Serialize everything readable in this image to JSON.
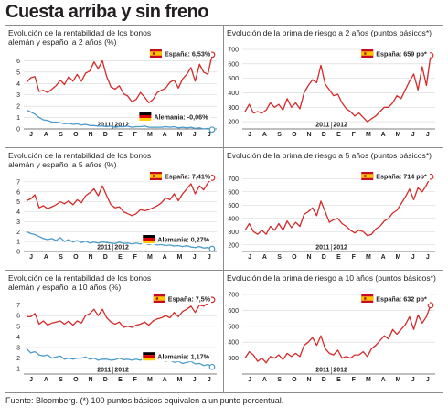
{
  "title": "Cuesta arriba y sin freno",
  "source": "Fuente: Bloomberg. (*) 100 puntos básicos equivalen a un punto porcentual.",
  "colors": {
    "spain": "#d42a2a",
    "germany": "#4a9bc9",
    "grid": "#d6d6d6",
    "frame": "#8c8c8c",
    "text": "#231f20"
  },
  "icons": {
    "spain": "spain-flag-icon",
    "germany": "germany-flag-icon"
  },
  "months": [
    "J",
    "A",
    "S",
    "O",
    "N",
    "D",
    "E",
    "F",
    "M",
    "A",
    "M",
    "J",
    "J"
  ],
  "chart_data": [
    {
      "id": "bono-2",
      "type": "line",
      "title_lines": [
        "Evolución de la rentabilidad de los bonos",
        "alemán y español a 2 años (%)"
      ],
      "ylim": [
        0,
        7
      ],
      "yticks": [
        0,
        1,
        2,
        3,
        4,
        5,
        6
      ],
      "year_labels": [
        "2011",
        "2012"
      ],
      "series": [
        {
          "name": "España",
          "color": "#d42a2a",
          "label": "España: 6,53%",
          "flag": "spain",
          "callout": "top",
          "values": [
            4.1,
            4.5,
            4.6,
            3.3,
            3.4,
            3.2,
            3.5,
            3.8,
            4.3,
            3.9,
            4.6,
            4.2,
            4.8,
            4.2,
            4.9,
            5.1,
            5.9,
            5.3,
            6.0,
            4.6,
            3.7,
            3.5,
            3.8,
            3.1,
            2.9,
            2.4,
            2.6,
            3.2,
            2.8,
            2.3,
            2.6,
            3.2,
            3.4,
            3.6,
            4.1,
            4.3,
            3.6,
            4.4,
            4.8,
            5.4,
            4.2,
            5.7,
            5.0,
            4.8,
            6.53
          ]
        },
        {
          "name": "Alemania",
          "color": "#4a9bc9",
          "label": "Alemania: -0,06%",
          "flag": "germany",
          "callout": "bottom",
          "values": [
            1.65,
            1.5,
            1.3,
            1.0,
            0.8,
            0.75,
            0.6,
            0.6,
            0.55,
            0.45,
            0.5,
            0.4,
            0.45,
            0.35,
            0.4,
            0.3,
            0.3,
            0.25,
            0.25,
            0.2,
            0.25,
            0.15,
            0.2,
            0.2,
            0.25,
            0.15,
            0.2,
            0.2,
            0.25,
            0.15,
            0.15,
            0.15,
            0.15,
            0.2,
            0.15,
            0.2,
            0.1,
            0.15,
            0.1,
            0.15,
            0.05,
            0.1,
            0.0,
            0.05,
            -0.06
          ]
        }
      ]
    },
    {
      "id": "prima-2",
      "type": "line",
      "title_lines": [
        "Evolución de la prima de riesgo a 2 años (puntos básicos*)"
      ],
      "ylim": [
        150,
        700
      ],
      "yticks": [
        200,
        300,
        400,
        500,
        600,
        700
      ],
      "year_labels": [
        "2011",
        "2012"
      ],
      "series": [
        {
          "name": "España",
          "color": "#d42a2a",
          "label": "España: 659 pb*",
          "flag": "spain",
          "callout": "top",
          "values": [
            270,
            320,
            260,
            270,
            260,
            280,
            330,
            300,
            320,
            280,
            360,
            300,
            330,
            290,
            400,
            450,
            490,
            470,
            590,
            460,
            420,
            380,
            390,
            330,
            290,
            270,
            240,
            260,
            230,
            200,
            220,
            240,
            270,
            300,
            300,
            330,
            380,
            360,
            420,
            480,
            530,
            420,
            580,
            450,
            659
          ]
        }
      ]
    },
    {
      "id": "bono-5",
      "type": "line",
      "title_lines": [
        "Evolución de la rentabilidad de los bonos",
        "alemán y español a 5 años (%)"
      ],
      "ylim": [
        0,
        8
      ],
      "yticks": [
        0,
        1,
        2,
        3,
        4,
        5,
        6,
        7
      ],
      "year_labels": [
        "2011",
        "2012"
      ],
      "series": [
        {
          "name": "España",
          "color": "#d42a2a",
          "label": "España: 7,41%",
          "flag": "spain",
          "callout": "top",
          "values": [
            5.1,
            5.3,
            5.7,
            4.4,
            4.6,
            4.3,
            4.5,
            4.7,
            5.0,
            4.8,
            5.1,
            4.7,
            5.2,
            4.9,
            5.6,
            5.9,
            6.3,
            5.6,
            6.6,
            5.6,
            4.7,
            4.4,
            4.5,
            4.0,
            3.8,
            3.6,
            3.8,
            4.2,
            4.1,
            4.2,
            4.4,
            4.6,
            4.9,
            5.4,
            5.2,
            5.8,
            5.1,
            5.8,
            6.3,
            6.8,
            5.8,
            6.6,
            6.2,
            6.9,
            7.41
          ]
        },
        {
          "name": "Alemania",
          "color": "#4a9bc9",
          "label": "Alemania: 0,27%",
          "flag": "germany",
          "callout": "bottom",
          "values": [
            2.0,
            1.8,
            1.7,
            1.5,
            1.3,
            1.2,
            1.3,
            1.1,
            1.4,
            1.0,
            1.2,
            0.95,
            1.1,
            0.9,
            1.05,
            0.85,
            0.95,
            0.85,
            0.95,
            0.9,
            0.85,
            0.8,
            0.95,
            0.8,
            0.85,
            0.75,
            0.85,
            0.75,
            0.85,
            0.7,
            0.8,
            0.65,
            0.7,
            0.6,
            0.65,
            0.55,
            0.6,
            0.5,
            0.6,
            0.45,
            0.4,
            0.5,
            0.35,
            0.4,
            0.27
          ]
        }
      ]
    },
    {
      "id": "prima-5",
      "type": "line",
      "title_lines": [
        "Evolución de la prima de riesgo a 5 años (puntos básicos*)"
      ],
      "ylim": [
        150,
        750
      ],
      "yticks": [
        200,
        300,
        400,
        500,
        600,
        700
      ],
      "year_labels": [
        "2011",
        "2012"
      ],
      "series": [
        {
          "name": "España",
          "color": "#d42a2a",
          "label": "España: 714 pb*",
          "flag": "spain",
          "callout": "top",
          "values": [
            310,
            360,
            300,
            280,
            310,
            280,
            340,
            310,
            360,
            310,
            380,
            330,
            370,
            340,
            430,
            450,
            480,
            420,
            530,
            450,
            370,
            390,
            400,
            360,
            340,
            310,
            290,
            310,
            300,
            270,
            280,
            320,
            340,
            380,
            400,
            440,
            460,
            510,
            560,
            620,
            540,
            630,
            600,
            650,
            714
          ]
        }
      ]
    },
    {
      "id": "bono-10",
      "type": "line",
      "title_lines": [
        "Evolución de la rentabilidad de los bonos",
        "alemán y español a 10 años (%)"
      ],
      "ylim": [
        0.5,
        8
      ],
      "yticks": [
        1,
        2,
        3,
        4,
        5,
        6,
        7
      ],
      "year_labels": [
        "2011",
        "2012"
      ],
      "series": [
        {
          "name": "España",
          "color": "#d42a2a",
          "label": "España: 7,5%",
          "flag": "spain",
          "callout": "top",
          "values": [
            5.9,
            5.9,
            6.2,
            5.2,
            5.5,
            5.1,
            5.3,
            5.4,
            5.5,
            5.2,
            5.5,
            5.1,
            5.5,
            5.3,
            6.0,
            6.2,
            6.6,
            6.0,
            6.6,
            5.8,
            5.4,
            5.2,
            5.4,
            4.9,
            5.0,
            4.9,
            5.1,
            5.2,
            5.4,
            5.1,
            5.5,
            5.7,
            5.8,
            6.0,
            5.8,
            6.3,
            5.9,
            6.4,
            6.6,
            6.9,
            6.3,
            7.0,
            6.9,
            7.2,
            7.5
          ]
        },
        {
          "name": "Alemania",
          "color": "#4a9bc9",
          "label": "Alemania: 1,17%",
          "flag": "germany",
          "callout": "bottom",
          "values": [
            2.9,
            2.5,
            2.6,
            2.3,
            2.2,
            2.3,
            2.0,
            2.1,
            2.2,
            1.9,
            2.0,
            1.9,
            2.0,
            2.0,
            2.1,
            1.9,
            2.0,
            1.8,
            1.9,
            1.9,
            1.8,
            1.85,
            2.0,
            1.85,
            1.9,
            1.8,
            1.9,
            1.8,
            2.0,
            1.85,
            1.9,
            1.75,
            1.8,
            1.7,
            1.8,
            1.6,
            1.7,
            1.5,
            1.6,
            1.7,
            1.45,
            1.5,
            1.3,
            1.4,
            1.17
          ]
        }
      ]
    },
    {
      "id": "prima-10",
      "type": "line",
      "title_lines": [
        "Evolución de la prima de riesgo a 10 años (puntos básicos*)"
      ],
      "ylim": [
        200,
        700
      ],
      "yticks": [
        300,
        400,
        500,
        600,
        700
      ],
      "year_labels": [
        "2011",
        "2012"
      ],
      "series": [
        {
          "name": "España",
          "color": "#d42a2a",
          "label": "España: 632 pb*",
          "flag": "spain",
          "callout": "top",
          "values": [
            300,
            340,
            320,
            280,
            300,
            270,
            310,
            300,
            320,
            290,
            330,
            310,
            330,
            310,
            380,
            400,
            430,
            380,
            440,
            360,
            330,
            320,
            350,
            300,
            310,
            300,
            320,
            320,
            340,
            310,
            360,
            380,
            410,
            440,
            420,
            480,
            450,
            480,
            510,
            560,
            480,
            570,
            520,
            560,
            632
          ]
        }
      ]
    }
  ]
}
